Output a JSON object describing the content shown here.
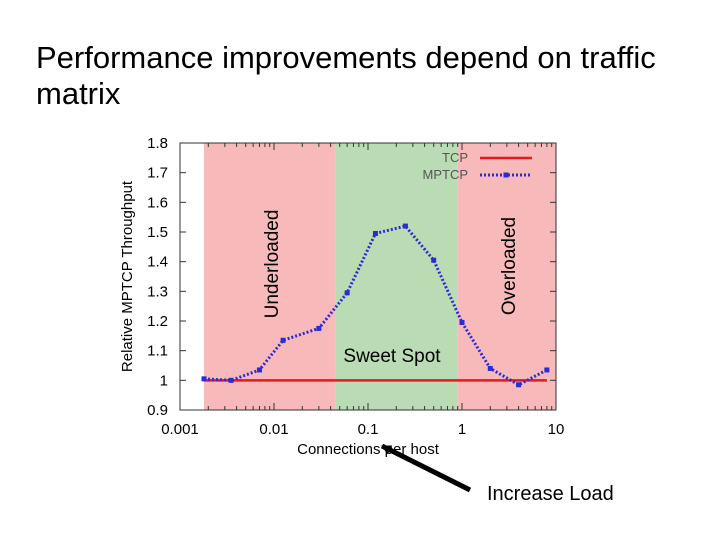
{
  "slide": {
    "title": "Performance improvements depend on traffic matrix"
  },
  "chart_data": {
    "type": "line",
    "xlabel": "Connections per host",
    "ylabel": "Relative MPTCP Throughput",
    "xscale": "log",
    "xlim": [
      0.001,
      10
    ],
    "ylim": [
      0.9,
      1.8
    ],
    "xticks": [
      0.001,
      0.01,
      0.1,
      1,
      10
    ],
    "xtick_labels": [
      "0.001",
      "0.01",
      "0.1",
      "1",
      "10"
    ],
    "yticks": [
      0.9,
      1,
      1.1,
      1.2,
      1.3,
      1.4,
      1.5,
      1.6,
      1.7,
      1.8
    ],
    "ytick_labels": [
      "0.9",
      "1",
      "1.1",
      "1.2",
      "1.3",
      "1.4",
      "1.5",
      "1.6",
      "1.7",
      "1.8"
    ],
    "legend_position": "top-right",
    "series": [
      {
        "name": "TCP",
        "color": "#e31a1c",
        "style": "solid",
        "x": [
          0.0018,
          8
        ],
        "y": [
          1.0,
          1.0
        ]
      },
      {
        "name": "MPTCP",
        "color": "#2b2bd6",
        "style": "dotted",
        "x": [
          0.0018,
          0.0035,
          0.007,
          0.0125,
          0.03,
          0.06,
          0.12,
          0.25,
          0.5,
          1.0,
          2.0,
          4.0,
          8.0
        ],
        "y": [
          1.005,
          1.0,
          1.035,
          1.135,
          1.175,
          1.295,
          1.495,
          1.52,
          1.405,
          1.195,
          1.04,
          0.985,
          1.035
        ]
      }
    ],
    "regions": [
      {
        "label": "Underloaded",
        "x_from": 0.0018,
        "x_to": 0.045,
        "color": "#f7b9b9",
        "label_orientation": "vertical"
      },
      {
        "label": "Sweet Spot",
        "x_from": 0.045,
        "x_to": 0.9,
        "color": "#b9dcb4",
        "label_orientation": "horizontal"
      },
      {
        "label": "Overloaded",
        "x_from": 0.9,
        "x_to": 10,
        "color": "#f7b9b9",
        "label_orientation": "vertical"
      }
    ],
    "annotation": {
      "text": "Increase Load",
      "arrow": "points up-left toward the x axis"
    }
  }
}
